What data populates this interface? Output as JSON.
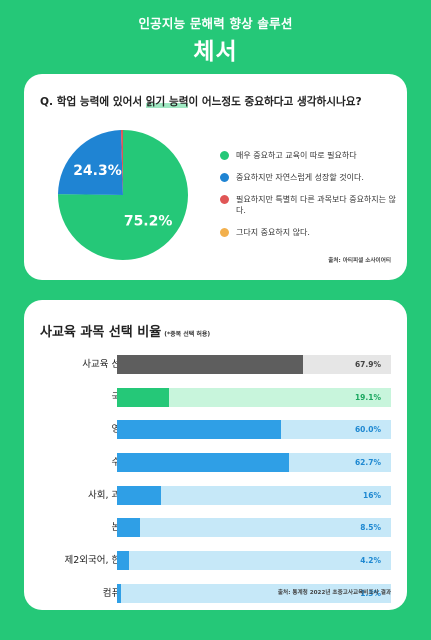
{
  "header": {
    "subtitle": "인공지능 문해력 향상 솔루션",
    "logo": "체서"
  },
  "survey": {
    "question_prefix": "Q. 학업 능력에 있어서 ",
    "question_highlight": "읽기 능력",
    "question_suffix": "이 어느정도 중요하다고 생각하시나요?",
    "source": "출처: 아티피셜 소사이어티"
  },
  "bar_section": {
    "title": "사교육 과목 선택 비율",
    "note": "(*중복 선택 허용)",
    "source": "출처: 통계청 2022년 초중고사교육비조사 결과"
  },
  "chart_data": [
    {
      "type": "pie",
      "title": "Q. 학업 능력에 있어서 읽기 능력이 어느정도 중요하다고 생각하시나요?",
      "slices": [
        {
          "label": "매우 중요하고 교육이 따로 필요하다",
          "value": 75.2,
          "value_label": "75.2%",
          "color": "#25c878"
        },
        {
          "label": "중요하지만 자연스럽게 성장할 것이다.",
          "value": 24.3,
          "value_label": "24.3%",
          "color": "#1f84d3"
        },
        {
          "label": "필요하지만 특별히 다른 과목보다 중요하지는 않다.",
          "value": 0.5,
          "value_label": "",
          "color": "#e05656"
        },
        {
          "label": "그다지 중요하지 않다.",
          "value": 0,
          "value_label": "",
          "color": "#f2b04d"
        }
      ],
      "legend_position": "right"
    },
    {
      "type": "bar",
      "orientation": "horizontal",
      "title": "사교육 과목 선택 비율",
      "xlim": [
        0,
        100
      ],
      "grid": false,
      "bars": [
        {
          "category": "사교육 선택",
          "value": 67.9,
          "label": "67.9%",
          "color": "#5e5e5e",
          "track": "#e6e6e6",
          "text_color": "#444444"
        },
        {
          "category": "국어",
          "value": 19.1,
          "label": "19.1%",
          "color": "#25c878",
          "track": "#c8f5dc",
          "text_color": "#1aa75f"
        },
        {
          "category": "영어",
          "value": 60.0,
          "label": "60.0%",
          "color": "#2f9fe6",
          "track": "#c6e8f8",
          "text_color": "#1e88d1"
        },
        {
          "category": "수학",
          "value": 62.7,
          "label": "62.7%",
          "color": "#2f9fe6",
          "track": "#c6e8f8",
          "text_color": "#1e88d1"
        },
        {
          "category": "사회, 과학",
          "value": 16,
          "label": "16%",
          "color": "#2f9fe6",
          "track": "#c6e8f8",
          "text_color": "#1e88d1"
        },
        {
          "category": "논술",
          "value": 8.5,
          "label": "8.5%",
          "color": "#2f9fe6",
          "track": "#c6e8f8",
          "text_color": "#1e88d1"
        },
        {
          "category": "제2외국어, 한문",
          "value": 4.2,
          "label": "4.2%",
          "color": "#2f9fe6",
          "track": "#c6e8f8",
          "text_color": "#1e88d1"
        },
        {
          "category": "컴퓨터",
          "value": 1.3,
          "label": "1.3%",
          "color": "#2f9fe6",
          "track": "#c6e8f8",
          "text_color": "#1e88d1"
        }
      ]
    }
  ]
}
